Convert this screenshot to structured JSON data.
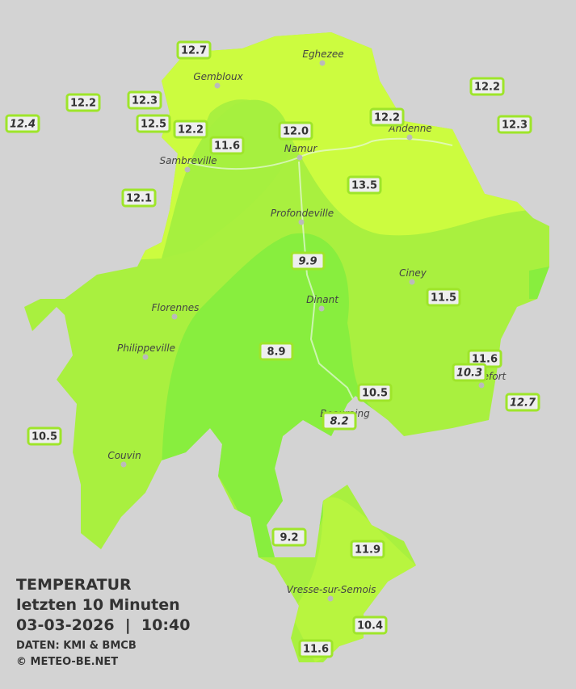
{
  "legend": {
    "title": "TEMPERATUR",
    "subtitle": "letzten 10 Minuten",
    "datetime": "03-03-2026  |  10:40",
    "source": "DATEN: KMI & BMCB",
    "copyright": "© METEO-BE.NET"
  },
  "cities": [
    "Eghezee",
    "Gembloux",
    "Andenne",
    "Namur",
    "Sambreville",
    "Profondeville",
    "Ciney",
    "Dinant",
    "Florennes",
    "Philippeville",
    "Rochefort",
    "Beauraing",
    "Couvin",
    "Vresse-sur-Semois"
  ],
  "stations": [
    "12.7",
    "12.2",
    "12.3",
    "12.4",
    "12.5",
    "12.2",
    "11.6",
    "12.0",
    "12.2",
    "12.2",
    "12.3",
    "13.5",
    "12.1",
    "9.9",
    "11.5",
    "11.6",
    "10.3",
    "8.9",
    "10.5",
    "12.7",
    "8.2",
    "10.5",
    "9.2",
    "11.9",
    "10.4",
    "11.6"
  ]
}
